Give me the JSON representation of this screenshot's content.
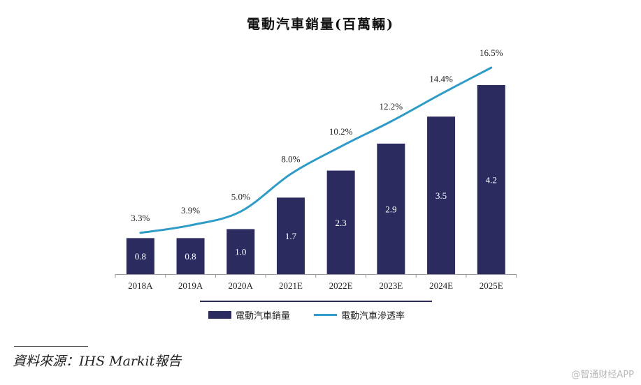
{
  "chart_data": {
    "type": "bar",
    "title": "電動汽車銷量(百萬輛)",
    "categories": [
      "2018A",
      "2019A",
      "2020A",
      "2021E",
      "2022E",
      "2023E",
      "2024E",
      "2025E"
    ],
    "series": [
      {
        "name": "電動汽車銷量",
        "kind": "bar",
        "values": [
          0.8,
          0.8,
          1.0,
          1.7,
          2.3,
          2.9,
          3.5,
          4.2
        ],
        "labels": [
          "0.8",
          "0.8",
          "1.0",
          "1.7",
          "2.3",
          "2.9",
          "3.5",
          "4.2"
        ]
      },
      {
        "name": "電動汽車滲透率",
        "kind": "line",
        "values": [
          3.3,
          3.9,
          5.0,
          8.0,
          10.2,
          12.2,
          14.4,
          16.5
        ],
        "labels": [
          "3.3%",
          "3.9%",
          "5.0%",
          "8.0%",
          "10.2%",
          "12.2%",
          "14.4%",
          "16.5%"
        ]
      }
    ],
    "ylim": [
      0,
      4.2
    ],
    "y2lim": [
      0,
      16.5
    ],
    "grid": false,
    "legend_position": "bottom",
    "colors": {
      "bar": "#2b2b60",
      "line": "#2e9cc6",
      "axis": "#999999"
    }
  },
  "source": "資料來源：IHS Markit報告",
  "watermark": "@智通财经APP"
}
